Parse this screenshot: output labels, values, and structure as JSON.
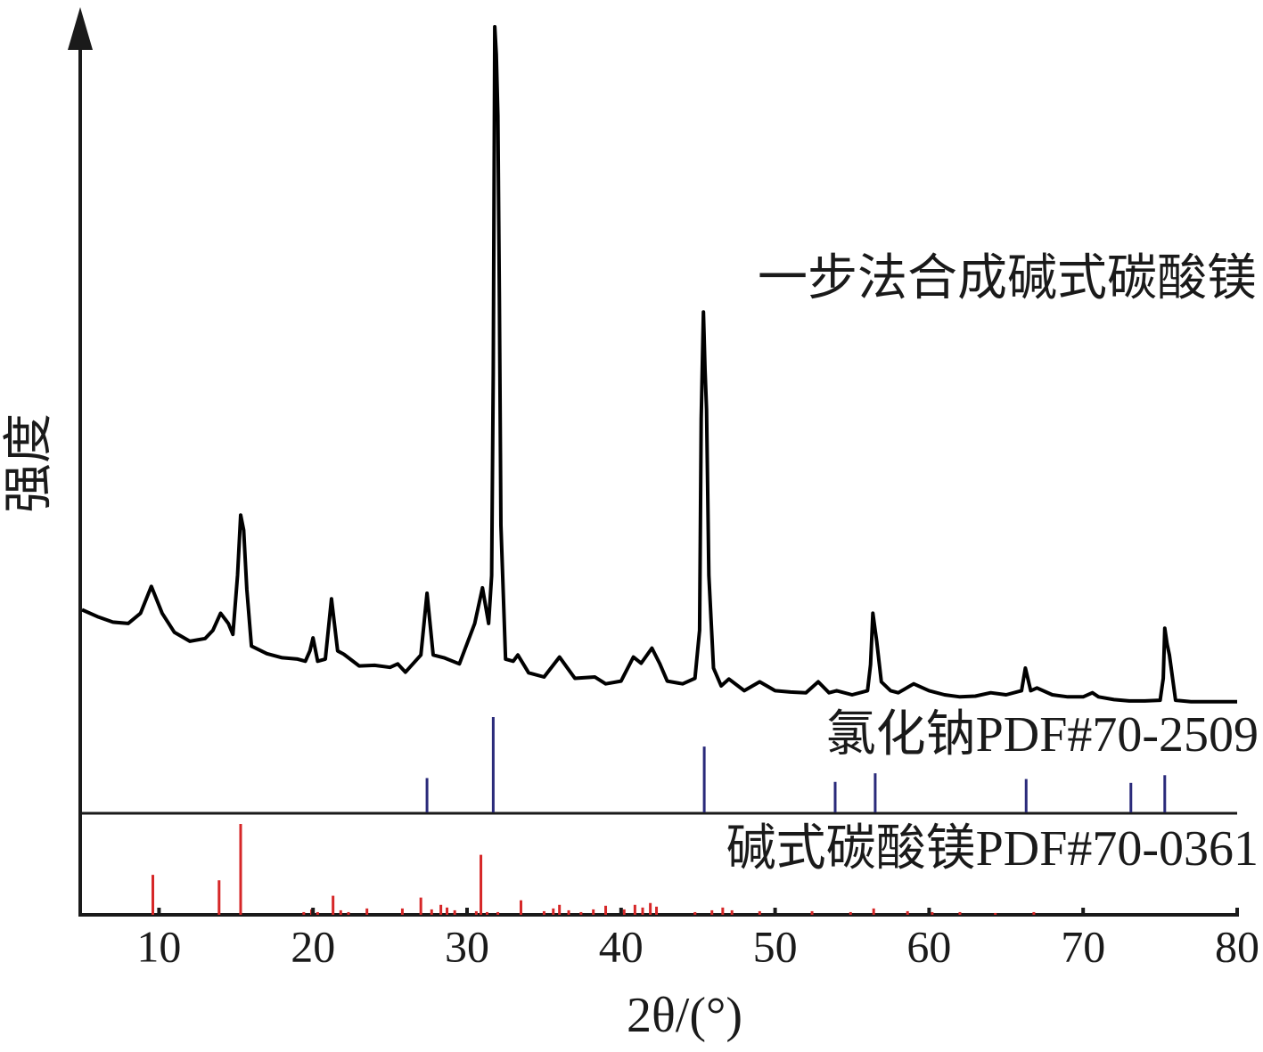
{
  "chart_data": [
    {
      "type": "line",
      "title": "一步法合成碱式碳酸镁",
      "color": "#000000",
      "xlim": [
        5,
        80
      ],
      "ylim": [
        0,
        100
      ],
      "x": [
        5,
        6,
        7,
        8,
        8.8,
        9.5,
        10.2,
        11,
        12,
        13,
        13.5,
        14,
        14.5,
        14.8,
        15.1,
        15.3,
        15.5,
        15.7,
        16,
        17,
        18,
        19,
        19.5,
        19.8,
        20,
        20.3,
        20.8,
        21.2,
        21.6,
        22,
        23,
        24,
        25,
        25.5,
        26,
        27,
        27.4,
        27.8,
        28.5,
        29.5,
        30.5,
        31,
        31.4,
        31.6,
        31.7,
        31.8,
        31.9,
        32,
        32.1,
        32.2,
        32.5,
        33,
        33.3,
        34,
        35,
        36,
        37,
        38.3,
        39,
        40,
        40.8,
        41.3,
        42,
        42.5,
        43,
        44,
        44.8,
        45.1,
        45.2,
        45.35,
        45.45,
        45.55,
        45.7,
        46,
        46.5,
        47,
        48,
        49,
        50,
        51,
        52,
        52.8,
        53.5,
        54,
        55,
        56,
        56.2,
        56.35,
        56.5,
        56.6,
        56.9,
        57.5,
        58,
        59,
        60,
        61,
        62,
        63,
        64,
        65,
        66,
        66.25,
        66.6,
        67,
        68,
        69,
        70,
        70.6,
        71,
        72,
        73,
        74,
        75,
        75.2,
        75.3,
        75.45,
        75.6,
        76,
        77,
        78,
        79,
        80
      ],
      "values": [
        15,
        14,
        13.2,
        13,
        14.5,
        18.4,
        14.5,
        11.7,
        10.4,
        10.8,
        12,
        14.5,
        13,
        11.4,
        20,
        28.8,
        26.6,
        18,
        9.7,
        8.6,
        8,
        7.8,
        7.5,
        9,
        10.9,
        7.5,
        7.8,
        16.6,
        9,
        8.5,
        6.8,
        6.9,
        6.6,
        7.1,
        5.9,
        8.4,
        17.4,
        8.4,
        8,
        7.1,
        13,
        18.2,
        13,
        20,
        49.4,
        100,
        96,
        87,
        60,
        27.3,
        7.8,
        7.5,
        8.4,
        5.8,
        5.2,
        8.1,
        5,
        5.2,
        4.2,
        4.6,
        8.1,
        7.2,
        9.4,
        7.2,
        4.6,
        4.2,
        5,
        12,
        42.9,
        58.4,
        50,
        44.2,
        20,
        6.5,
        3.9,
        4.9,
        3.2,
        4.5,
        3.2,
        3,
        2.9,
        4.5,
        2.9,
        3.2,
        2.6,
        3.2,
        7,
        14.5,
        12,
        10.4,
        4.5,
        3.2,
        2.9,
        4.2,
        3.2,
        2.6,
        2.3,
        2.4,
        2.9,
        2.6,
        3.2,
        6.5,
        3.2,
        3.6,
        2.6,
        2.3,
        2.3,
        2.9,
        2.3,
        1.9,
        1.7,
        1.7,
        1.8,
        5,
        12.3,
        10,
        8.4,
        1.8,
        1.6,
        1.6,
        1.6,
        1.6
      ]
    },
    {
      "type": "stem",
      "title": "氯化钠PDF#70-2509",
      "color": "#2a2a7a",
      "xlim": [
        5,
        80
      ],
      "ylim": [
        0,
        100
      ],
      "x": [
        27.4,
        31.7,
        45.4,
        53.9,
        56.5,
        66.3,
        73.1,
        75.3
      ],
      "values": [
        36,
        100,
        69,
        32,
        41,
        35,
        31,
        39
      ]
    },
    {
      "type": "stem",
      "title": "碱式碳酸镁PDF#70-0361",
      "color": "#d62728",
      "xlim": [
        5,
        80
      ],
      "ylim": [
        0,
        100
      ],
      "xticks": [
        10,
        20,
        30,
        40,
        50,
        60,
        70,
        80
      ],
      "xlabel": "2θ/(°)",
      "ylabel": "强度",
      "x": [
        9.6,
        13.9,
        15.3,
        19.4,
        19.9,
        20.3,
        21.3,
        21.8,
        22.3,
        23.5,
        25.8,
        27.0,
        27.7,
        28.3,
        28.7,
        29.2,
        30.6,
        30.9,
        31.3,
        32.0,
        33.5,
        35.0,
        35.6,
        36.0,
        36.6,
        37.4,
        38.2,
        39.0,
        40.2,
        40.9,
        41.4,
        41.9,
        42.3,
        44.8,
        45.9,
        46.6,
        47.2,
        49.0,
        50.0,
        52.4,
        54.9,
        56.4,
        58.6,
        60.2,
        62.0,
        64.3,
        66.8
      ],
      "values": [
        44,
        38,
        100,
        3,
        6,
        3,
        21,
        5,
        3,
        7,
        7,
        19,
        6,
        11,
        8,
        5,
        4,
        66,
        3,
        3,
        16,
        4,
        7,
        11,
        5,
        3,
        6,
        10,
        6,
        11,
        8,
        13,
        9,
        3,
        5,
        8,
        5,
        4,
        3,
        4,
        3,
        7,
        4,
        3,
        3,
        2,
        3
      ]
    }
  ]
}
